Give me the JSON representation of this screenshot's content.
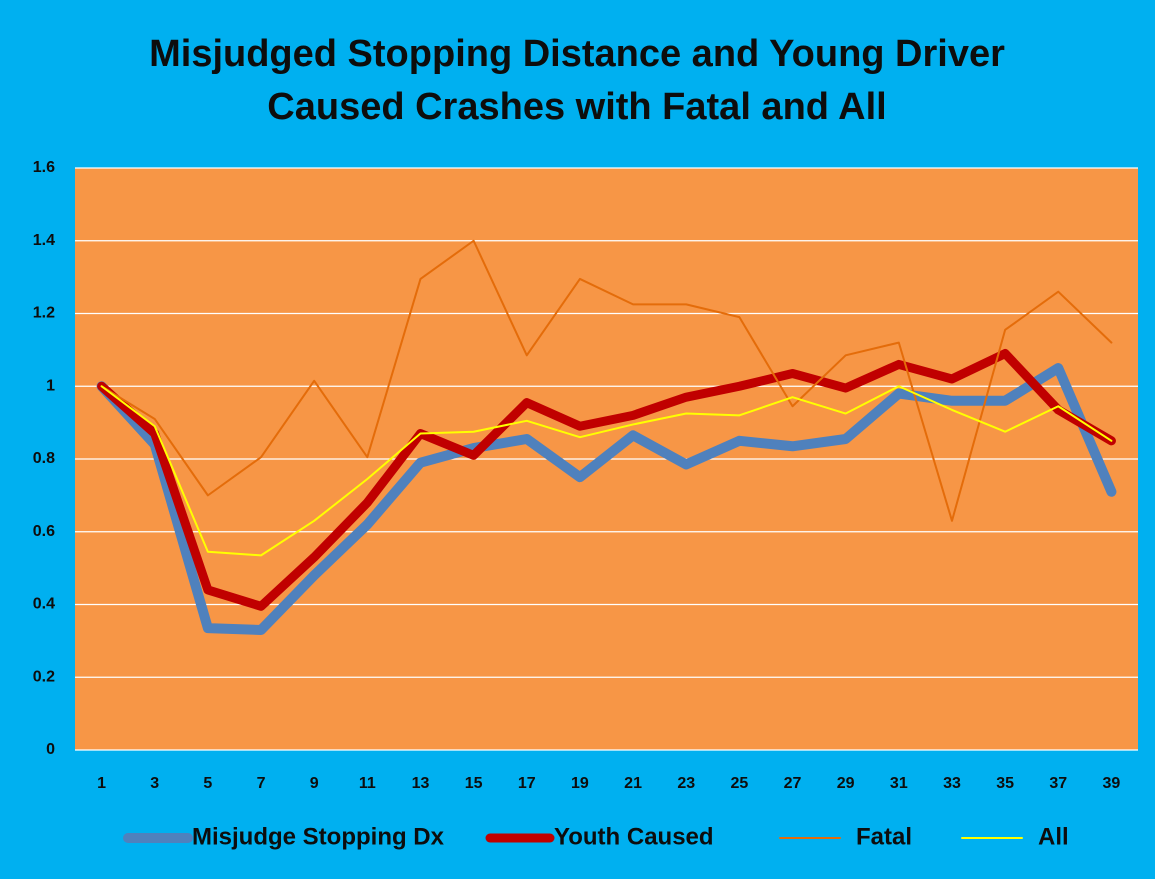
{
  "chart_data": {
    "type": "line",
    "title": "Misjudged Stopping Distance and Young Driver Caused Crashes with Fatal and All",
    "categories": [
      "1",
      "3",
      "5",
      "7",
      "9",
      "11",
      "13",
      "15",
      "17",
      "19",
      "21",
      "23",
      "25",
      "27",
      "29",
      "31",
      "33",
      "35",
      "37",
      "39"
    ],
    "series": [
      {
        "name": "Misjudge Stopping Dx",
        "color": "#4f81bd",
        "values": [
          1.0,
          0.84,
          0.335,
          0.33,
          0.48,
          0.62,
          0.79,
          0.83,
          0.855,
          0.75,
          0.865,
          0.785,
          0.85,
          0.835,
          0.855,
          0.98,
          0.96,
          0.96,
          1.05,
          0.71
        ]
      },
      {
        "name": "Youth Caused",
        "color": "#c00000",
        "values": [
          1.0,
          0.87,
          0.44,
          0.395,
          0.53,
          0.68,
          0.87,
          0.81,
          0.955,
          0.89,
          0.92,
          0.97,
          1.0,
          1.035,
          0.995,
          1.06,
          1.02,
          1.09,
          0.935,
          0.85
        ]
      },
      {
        "name": "Fatal",
        "color": "#e46c0a",
        "values": [
          1.0,
          0.91,
          0.7,
          0.805,
          1.015,
          0.805,
          1.295,
          1.4,
          1.085,
          1.295,
          1.225,
          1.225,
          1.19,
          0.945,
          1.085,
          1.12,
          0.63,
          1.155,
          1.26,
          1.12
        ]
      },
      {
        "name": "All",
        "color": "#ffff00",
        "values": [
          1.0,
          0.89,
          0.545,
          0.535,
          0.63,
          0.745,
          0.87,
          0.875,
          0.905,
          0.86,
          0.895,
          0.925,
          0.92,
          0.97,
          0.925,
          1.0,
          0.935,
          0.875,
          0.945,
          0.85
        ]
      }
    ],
    "ylim": [
      0,
      1.6
    ],
    "yticks": [
      0,
      0.2,
      0.4,
      0.6,
      0.8,
      1,
      1.2,
      1.4,
      1.6
    ],
    "grid": true,
    "plot_color": "#f79646",
    "legend": "bottom"
  }
}
